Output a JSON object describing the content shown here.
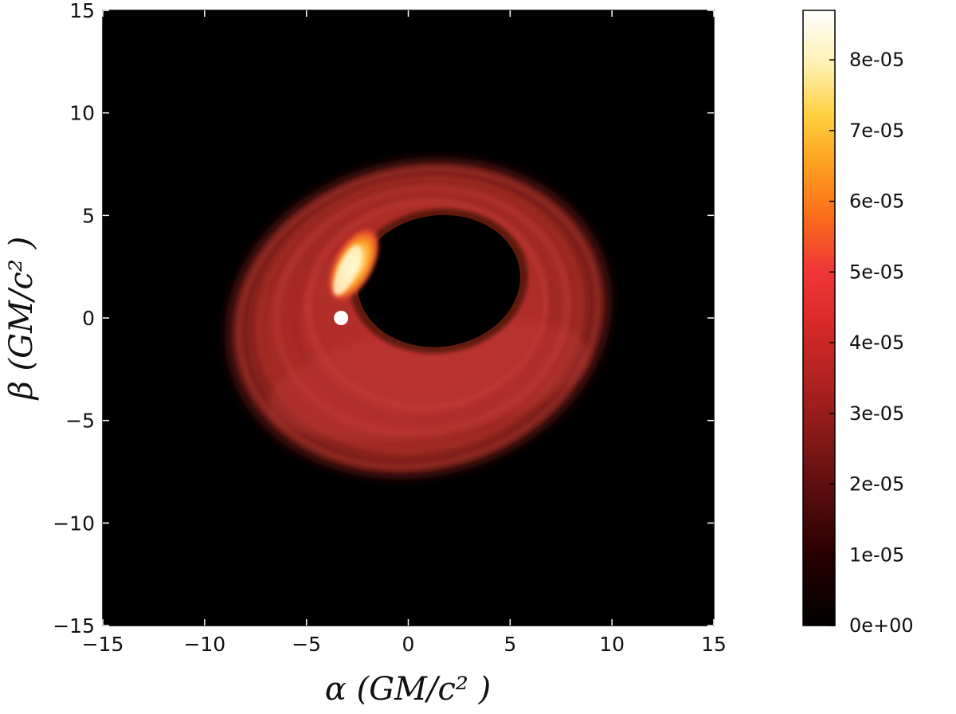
{
  "chart_data": {
    "type": "heatmap",
    "title": "",
    "xlabel": "α (GM/c² )",
    "ylabel": "β (GM/c² )",
    "xlim": [
      -15,
      15
    ],
    "ylim": [
      -15,
      15
    ],
    "x_ticks": [
      -15,
      -10,
      -5,
      0,
      5,
      10,
      15
    ],
    "y_ticks": [
      -15,
      -10,
      -5,
      0,
      5,
      10,
      15
    ],
    "x_tick_labels": [
      "−15",
      "−10",
      "−5",
      "0",
      "5",
      "10",
      "15"
    ],
    "y_tick_labels": [
      "−15",
      "−10",
      "−5",
      "0",
      "5",
      "10",
      "15"
    ],
    "grid": false,
    "colormap": "hot",
    "colorbar": {
      "range": [
        0,
        8.7e-05
      ],
      "ticks": [
        0,
        1e-05,
        2e-05,
        3e-05,
        4e-05,
        5e-05,
        6e-05,
        7e-05,
        8e-05
      ],
      "tick_labels": [
        "0e+00",
        "1e-05",
        "2e-05",
        "3e-05",
        "4e-05",
        "5e-05",
        "6e-05",
        "7e-05",
        "8e-05"
      ]
    },
    "background_value": 0,
    "disk": {
      "center": [
        0.5,
        0.0
      ],
      "outer_semi_axes": [
        9.7,
        7.8
      ],
      "tilt_deg": -14,
      "typical_value": 2.6e-05
    },
    "shadow": {
      "center": [
        1.5,
        1.8
      ],
      "semi_axes": [
        4.0,
        3.2
      ],
      "value": 0
    },
    "hotspot": {
      "position": [
        -3.0,
        2.5
      ],
      "peak_value": 8.5e-05
    },
    "marker": {
      "position": [
        -3.3,
        0.0
      ],
      "color": "#ffffff"
    }
  }
}
